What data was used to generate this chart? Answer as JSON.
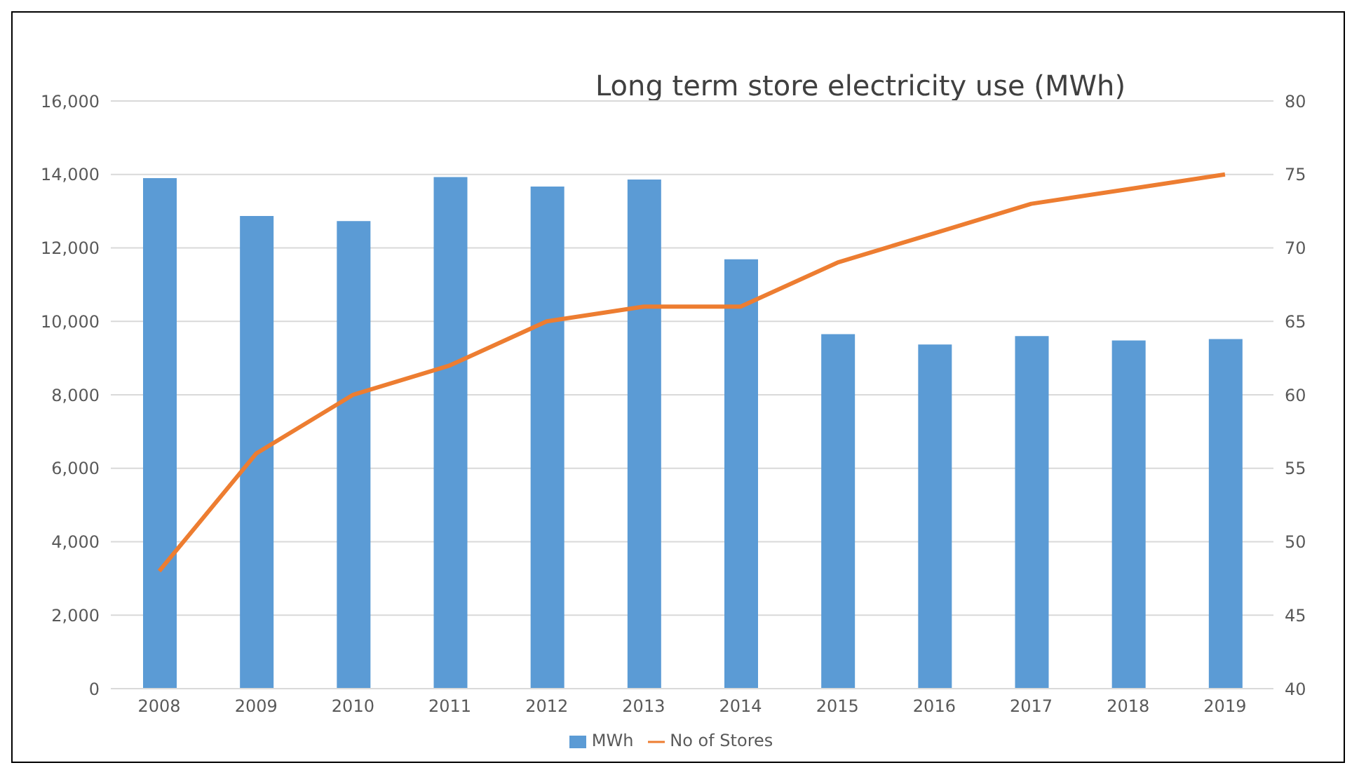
{
  "chart_data": {
    "type": "bar",
    "title": "Long term store electricity use (MWh)",
    "categories": [
      "2008",
      "2009",
      "2010",
      "2011",
      "2012",
      "2013",
      "2014",
      "2015",
      "2016",
      "2017",
      "2018",
      "2019"
    ],
    "series": [
      {
        "name": "MWh",
        "color": "#5b9bd5",
        "values": [
          13900,
          12870,
          12730,
          13930,
          13670,
          13860,
          11690,
          9650,
          9370,
          9600,
          9480,
          9520
        ]
      },
      {
        "name": "No of Stores",
        "type": "line",
        "axis": "y2",
        "color": "#ed7d31",
        "values": [
          48,
          56,
          60,
          62,
          65,
          66,
          66,
          69,
          71,
          73,
          74,
          75
        ]
      }
    ],
    "ylim": [
      0,
      16000
    ],
    "yticks": [
      0,
      {
        "value": 2000,
        "label": "2,000"
      },
      {
        "value": 4000,
        "label": "4,000"
      },
      {
        "value": 6000,
        "label": "6,000"
      },
      {
        "value": 8000,
        "label": "8,000"
      },
      {
        "value": 10000,
        "label": "10,000"
      },
      {
        "value": 12000,
        "label": "12,000"
      },
      {
        "value": 14000,
        "label": "14,000"
      },
      {
        "value": 16000,
        "label": "16,000"
      }
    ],
    "y2lim": [
      40,
      80
    ],
    "y2ticks": [
      40,
      45,
      50,
      55,
      60,
      65,
      70,
      75,
      80
    ],
    "grid": "y",
    "legend": "bottom",
    "marker": "none"
  }
}
